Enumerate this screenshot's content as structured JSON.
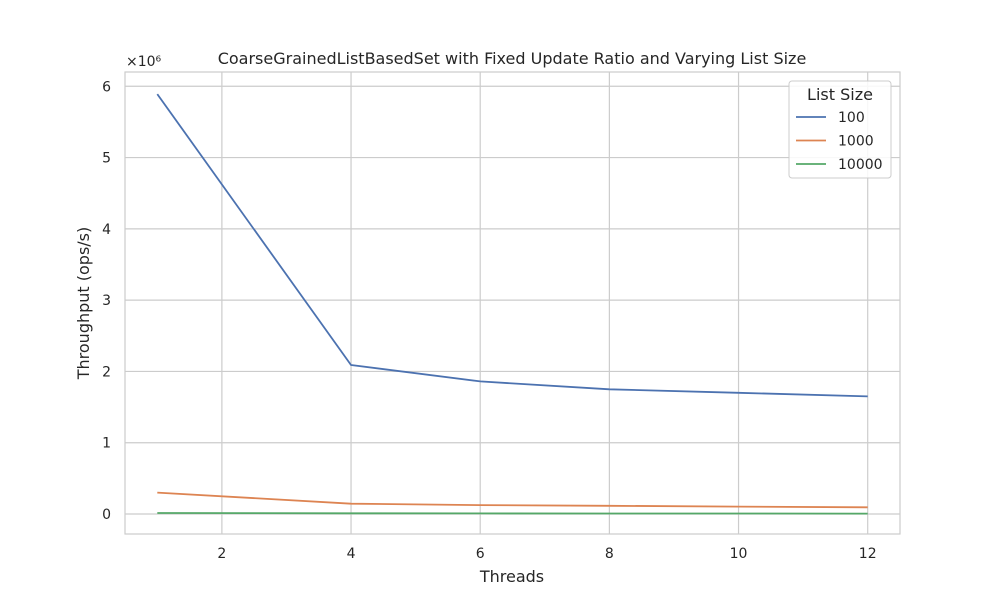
{
  "chart_data": {
    "type": "line",
    "title": "CoarseGrainedListBasedSet with Fixed Update Ratio and Varying List Size",
    "xlabel": "Threads",
    "ylabel": "Throughput (ops/s)",
    "y_scale_label": "×10⁶",
    "x": [
      1,
      4,
      6,
      8,
      10,
      12
    ],
    "xlim": [
      0.5,
      12.5
    ],
    "ylim": [
      -0.28,
      6.2
    ],
    "x_ticks": [
      2,
      4,
      6,
      8,
      10,
      12
    ],
    "y_ticks": [
      0,
      1,
      2,
      3,
      4,
      5,
      6
    ],
    "y_tick_labels": [
      "0",
      "1",
      "2",
      "3",
      "4",
      "5",
      "6"
    ],
    "grid": true,
    "legend_title": "List Size",
    "legend_position": "top-right",
    "series": [
      {
        "name": "100",
        "color": "#4c72b0",
        "values": [
          5890000,
          2090000,
          1860000,
          1750000,
          1700000,
          1650000
        ]
      },
      {
        "name": "1000",
        "color": "#dd8452",
        "values": [
          300000,
          145000,
          125000,
          115000,
          105000,
          95000
        ]
      },
      {
        "name": "10000",
        "color": "#55a868",
        "values": [
          15000,
          10000,
          9000,
          8000,
          7000,
          6000
        ]
      }
    ]
  }
}
